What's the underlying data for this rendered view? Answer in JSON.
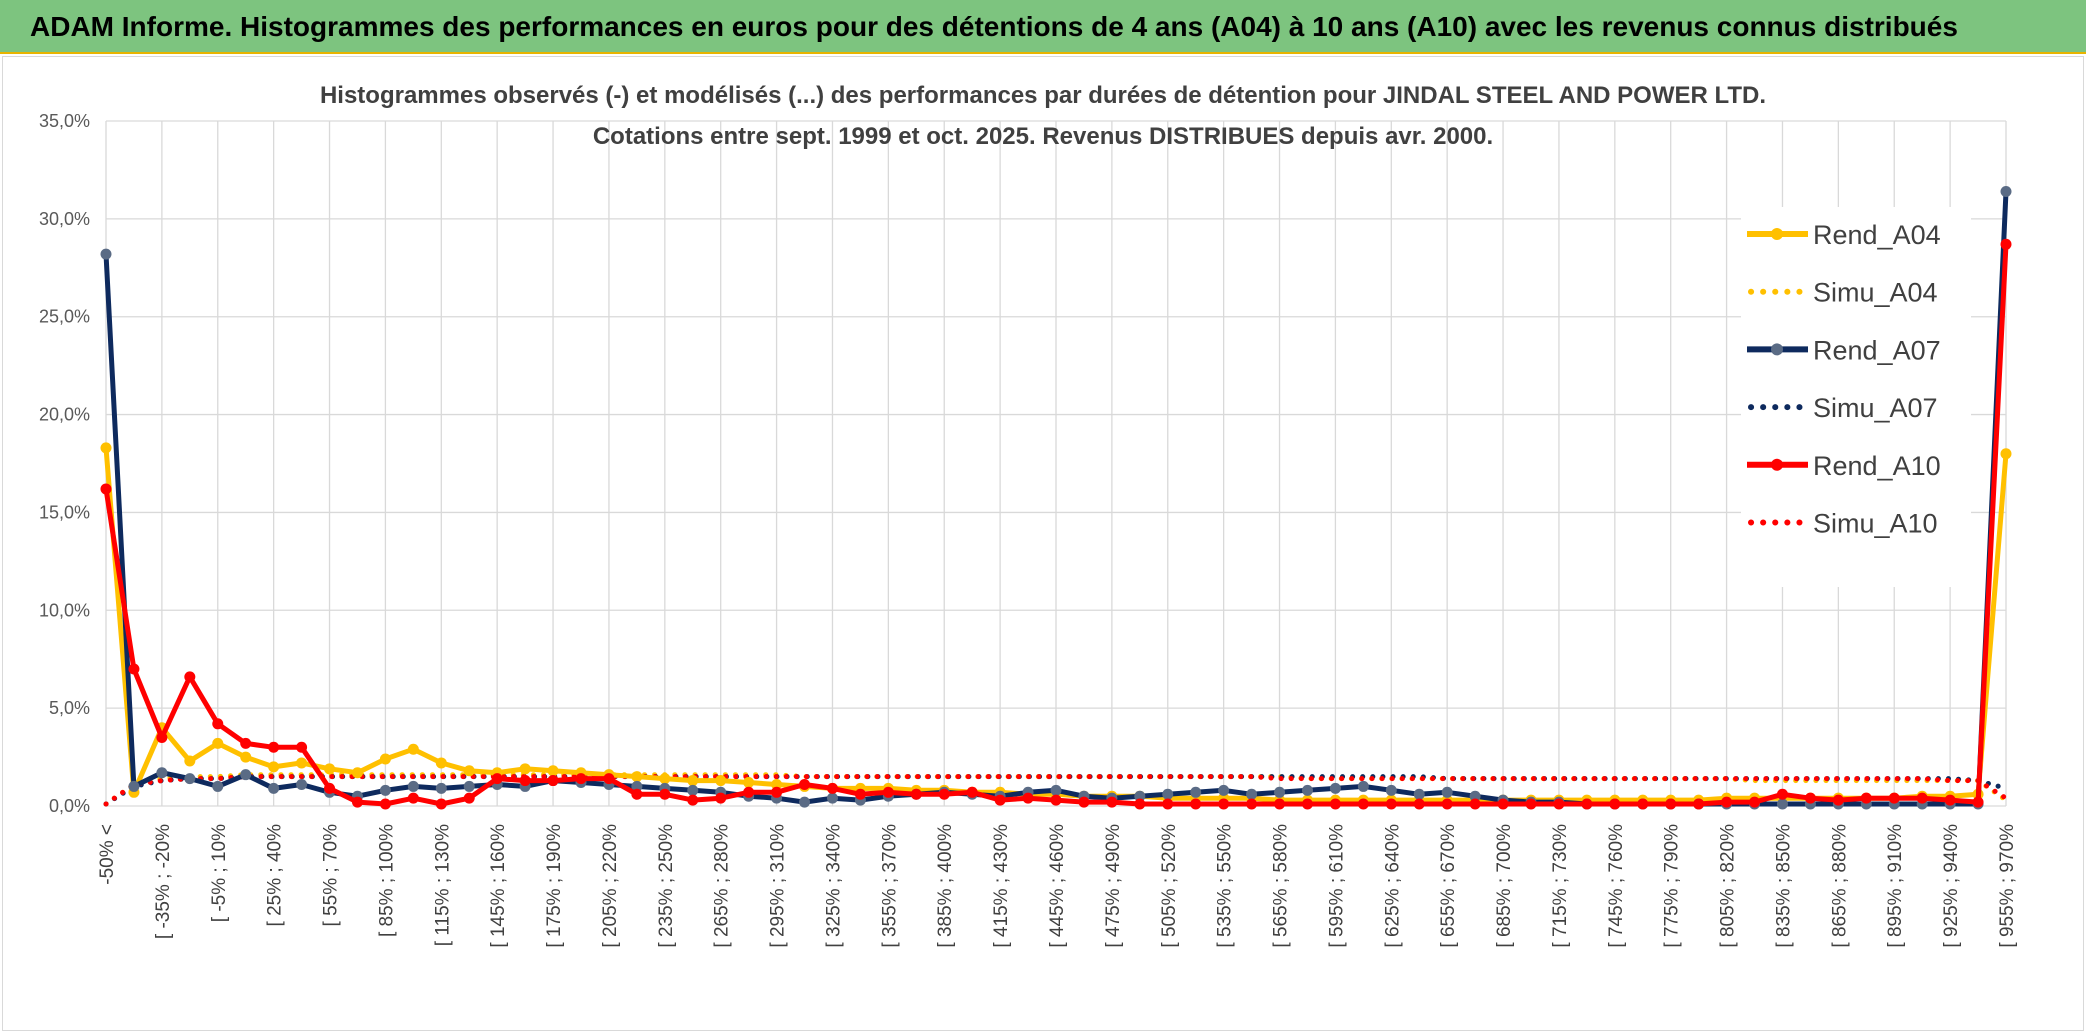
{
  "header": {
    "title": "ADAM Informe. Histogrammes des performances en euros pour des détentions de 4 ans (A04) à 10 ans (A10) avec les revenus connus distribués"
  },
  "colors": {
    "header_bg": "#7dc47f",
    "a04": "#ffc000",
    "a07": "#0e2a5e",
    "a07_marker": "#5a6b85",
    "a10": "#ff0000",
    "grid": "#d9d9d9"
  },
  "chart_data": {
    "type": "line",
    "title": [
      "Histogrammes observés (-) et modélisés (...) des performances par durées de détention pour JINDAL STEEL AND POWER LTD.",
      "Cotations entre sept. 1999 et oct. 2025. Revenus DISTRIBUES depuis avr. 2000."
    ],
    "ylim": [
      0,
      35
    ],
    "yticks": [
      0,
      5,
      10,
      15,
      20,
      25,
      30,
      35
    ],
    "ytick_labels": [
      "0,0%",
      "5,0%",
      "10,0%",
      "15,0%",
      "20,0%",
      "25,0%",
      "30,0%",
      "35,0%"
    ],
    "category_count": 69,
    "x_tick_labels": [
      {
        "i": 0,
        "label": "-50% <"
      },
      {
        "i": 2,
        "label": "[ -35% ; -20%"
      },
      {
        "i": 4,
        "label": "[ -5% ; 10%"
      },
      {
        "i": 6,
        "label": "[ 25% ; 40%"
      },
      {
        "i": 8,
        "label": "[ 55% ; 70%"
      },
      {
        "i": 10,
        "label": "[ 85% ; 100%"
      },
      {
        "i": 12,
        "label": "[ 115% ; 130%"
      },
      {
        "i": 14,
        "label": "[ 145% ; 160%"
      },
      {
        "i": 16,
        "label": "[ 175% ; 190%"
      },
      {
        "i": 18,
        "label": "[ 205% ; 220%"
      },
      {
        "i": 20,
        "label": "[ 235% ; 250%"
      },
      {
        "i": 22,
        "label": "[ 265% ; 280%"
      },
      {
        "i": 24,
        "label": "[ 295% ; 310%"
      },
      {
        "i": 26,
        "label": "[ 325% ; 340%"
      },
      {
        "i": 28,
        "label": "[ 355% ; 370%"
      },
      {
        "i": 30,
        "label": "[ 385% ; 400%"
      },
      {
        "i": 32,
        "label": "[ 415% ; 430%"
      },
      {
        "i": 34,
        "label": "[ 445% ; 460%"
      },
      {
        "i": 36,
        "label": "[ 475% ; 490%"
      },
      {
        "i": 38,
        "label": "[ 505% ; 520%"
      },
      {
        "i": 40,
        "label": "[ 535% ; 550%"
      },
      {
        "i": 42,
        "label": "[ 565% ; 580%"
      },
      {
        "i": 44,
        "label": "[ 595% ; 610%"
      },
      {
        "i": 46,
        "label": "[ 625% ; 640%"
      },
      {
        "i": 48,
        "label": "[ 655% ; 670%"
      },
      {
        "i": 50,
        "label": "[ 685% ; 700%"
      },
      {
        "i": 52,
        "label": "[ 715% ; 730%"
      },
      {
        "i": 54,
        "label": "[ 745% ; 760%"
      },
      {
        "i": 56,
        "label": "[ 775% ; 790%"
      },
      {
        "i": 58,
        "label": "[ 805% ; 820%"
      },
      {
        "i": 60,
        "label": "[ 835% ; 850%"
      },
      {
        "i": 62,
        "label": "[ 865% ; 880%"
      },
      {
        "i": 64,
        "label": "[ 895% ; 910%"
      },
      {
        "i": 66,
        "label": "[ 925% ; 940%"
      },
      {
        "i": 68,
        "label": "[ 955% ; 970%"
      }
    ],
    "series": [
      {
        "name": "Rend_A04",
        "style": "solid",
        "color": "#ffc000",
        "values": [
          18.3,
          0.7,
          4.0,
          2.3,
          3.2,
          2.5,
          2.0,
          2.2,
          1.9,
          1.7,
          2.4,
          2.9,
          2.2,
          1.8,
          1.7,
          1.9,
          1.8,
          1.7,
          1.6,
          1.5,
          1.4,
          1.3,
          1.3,
          1.2,
          1.1,
          1.0,
          0.9,
          0.9,
          0.9,
          0.8,
          0.8,
          0.7,
          0.7,
          0.6,
          0.6,
          0.5,
          0.5,
          0.5,
          0.4,
          0.4,
          0.4,
          0.4,
          0.3,
          0.3,
          0.3,
          0.3,
          0.3,
          0.3,
          0.3,
          0.3,
          0.3,
          0.3,
          0.3,
          0.3,
          0.3,
          0.3,
          0.3,
          0.3,
          0.4,
          0.4,
          0.4,
          0.4,
          0.4,
          0.4,
          0.4,
          0.5,
          0.5,
          0.6,
          18.0
        ]
      },
      {
        "name": "Simu_A04",
        "style": "dotted",
        "color": "#ffc000",
        "values": [
          0.1,
          1.1,
          1.4,
          1.5,
          1.5,
          1.6,
          1.6,
          1.6,
          1.6,
          1.6,
          1.6,
          1.6,
          1.6,
          1.6,
          1.6,
          1.6,
          1.6,
          1.6,
          1.6,
          1.6,
          1.6,
          1.6,
          1.6,
          1.6,
          1.6,
          1.5,
          1.5,
          1.5,
          1.5,
          1.5,
          1.5,
          1.5,
          1.5,
          1.5,
          1.5,
          1.5,
          1.5,
          1.5,
          1.5,
          1.5,
          1.5,
          1.5,
          1.5,
          1.4,
          1.4,
          1.4,
          1.4,
          1.4,
          1.4,
          1.4,
          1.4,
          1.4,
          1.4,
          1.4,
          1.4,
          1.4,
          1.4,
          1.4,
          1.4,
          1.3,
          1.3,
          1.3,
          1.3,
          1.3,
          1.3,
          1.3,
          1.3,
          1.3,
          0.3
        ]
      },
      {
        "name": "Rend_A07",
        "style": "solid",
        "color": "#0e2a5e",
        "values": [
          28.2,
          1.0,
          1.7,
          1.4,
          1.0,
          1.6,
          0.9,
          1.1,
          0.7,
          0.5,
          0.8,
          1.0,
          0.9,
          1.0,
          1.1,
          1.0,
          1.3,
          1.2,
          1.1,
          1.0,
          0.9,
          0.8,
          0.7,
          0.5,
          0.4,
          0.2,
          0.4,
          0.3,
          0.5,
          0.6,
          0.7,
          0.6,
          0.5,
          0.7,
          0.8,
          0.5,
          0.4,
          0.5,
          0.6,
          0.7,
          0.8,
          0.6,
          0.7,
          0.8,
          0.9,
          1.0,
          0.8,
          0.6,
          0.7,
          0.5,
          0.3,
          0.2,
          0.2,
          0.1,
          0.1,
          0.1,
          0.1,
          0.1,
          0.1,
          0.1,
          0.1,
          0.1,
          0.1,
          0.1,
          0.1,
          0.1,
          0.1,
          0.1,
          31.4
        ]
      },
      {
        "name": "Simu_A07",
        "style": "dotted",
        "color": "#0e2a5e",
        "values": [
          0.1,
          1.0,
          1.3,
          1.4,
          1.4,
          1.5,
          1.5,
          1.5,
          1.5,
          1.5,
          1.5,
          1.5,
          1.5,
          1.5,
          1.5,
          1.5,
          1.5,
          1.5,
          1.5,
          1.5,
          1.5,
          1.5,
          1.5,
          1.5,
          1.5,
          1.5,
          1.5,
          1.5,
          1.5,
          1.5,
          1.5,
          1.5,
          1.5,
          1.5,
          1.5,
          1.5,
          1.5,
          1.5,
          1.5,
          1.5,
          1.5,
          1.5,
          1.5,
          1.5,
          1.5,
          1.5,
          1.5,
          1.5,
          1.4,
          1.4,
          1.4,
          1.4,
          1.4,
          1.4,
          1.4,
          1.4,
          1.4,
          1.4,
          1.4,
          1.4,
          1.4,
          1.4,
          1.4,
          1.4,
          1.4,
          1.4,
          1.4,
          1.3,
          0.9
        ]
      },
      {
        "name": "Rend_A10",
        "style": "solid",
        "color": "#ff0000",
        "values": [
          16.2,
          7.0,
          3.5,
          6.6,
          4.2,
          3.2,
          3.0,
          3.0,
          0.9,
          0.2,
          0.1,
          0.4,
          0.1,
          0.4,
          1.4,
          1.3,
          1.3,
          1.4,
          1.4,
          0.6,
          0.6,
          0.3,
          0.4,
          0.7,
          0.7,
          1.1,
          0.9,
          0.6,
          0.7,
          0.6,
          0.6,
          0.7,
          0.3,
          0.4,
          0.3,
          0.2,
          0.2,
          0.1,
          0.1,
          0.1,
          0.1,
          0.1,
          0.1,
          0.1,
          0.1,
          0.1,
          0.1,
          0.1,
          0.1,
          0.1,
          0.1,
          0.1,
          0.1,
          0.1,
          0.1,
          0.1,
          0.1,
          0.1,
          0.2,
          0.2,
          0.6,
          0.4,
          0.3,
          0.4,
          0.4,
          0.4,
          0.3,
          0.2,
          28.7
        ]
      },
      {
        "name": "Simu_A10",
        "style": "dotted",
        "color": "#ff0000",
        "values": [
          0.1,
          1.1,
          1.3,
          1.4,
          1.4,
          1.5,
          1.5,
          1.5,
          1.5,
          1.5,
          1.5,
          1.5,
          1.5,
          1.5,
          1.5,
          1.5,
          1.5,
          1.5,
          1.5,
          1.5,
          1.5,
          1.5,
          1.5,
          1.5,
          1.5,
          1.5,
          1.5,
          1.5,
          1.5,
          1.5,
          1.5,
          1.5,
          1.5,
          1.5,
          1.5,
          1.5,
          1.5,
          1.5,
          1.5,
          1.5,
          1.5,
          1.5,
          1.4,
          1.4,
          1.4,
          1.4,
          1.4,
          1.4,
          1.4,
          1.4,
          1.4,
          1.4,
          1.4,
          1.4,
          1.4,
          1.4,
          1.4,
          1.4,
          1.4,
          1.4,
          1.4,
          1.4,
          1.4,
          1.4,
          1.4,
          1.4,
          1.3,
          1.3,
          0.4
        ]
      }
    ],
    "legend": {
      "position": "right",
      "entries": [
        "Rend_A04",
        "Simu_A04",
        "Rend_A07",
        "Simu_A07",
        "Rend_A10",
        "Simu_A10"
      ]
    },
    "grid": true
  }
}
